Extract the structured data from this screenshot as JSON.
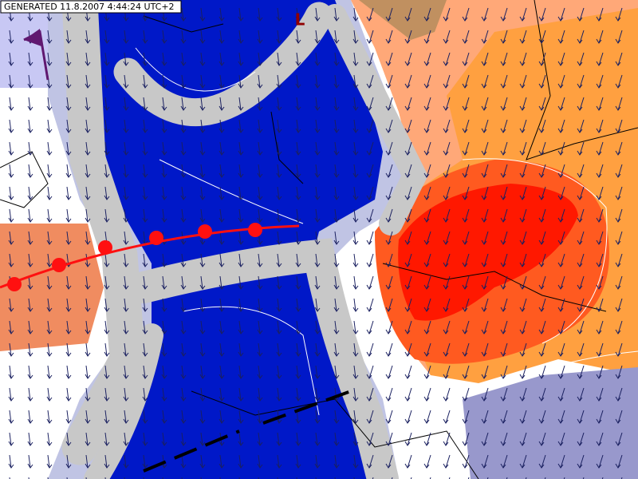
{
  "header": {
    "generated": "GENERATED 11.8.2007 4:44:24 UTC+2"
  },
  "pressure_centers": [
    {
      "label": "L"
    }
  ]
}
